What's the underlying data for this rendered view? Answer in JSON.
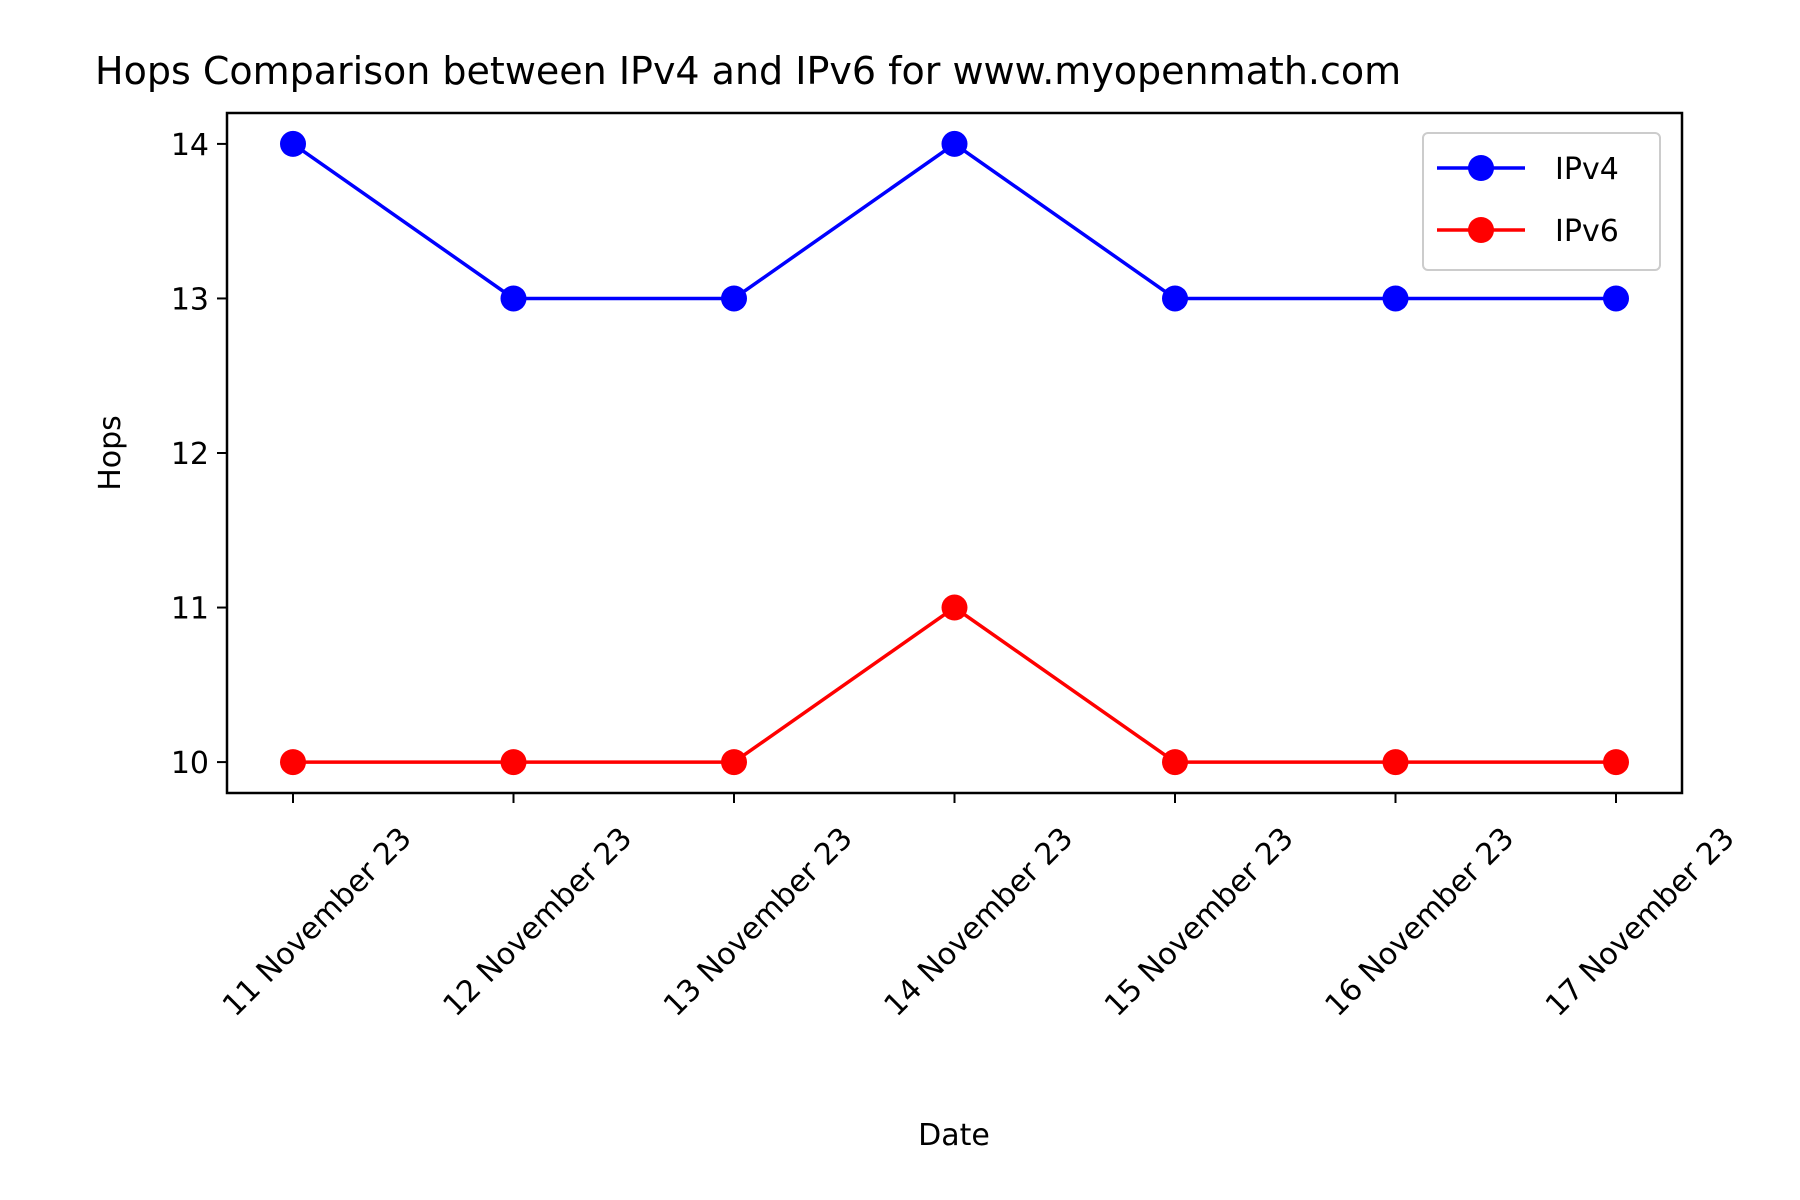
{
  "chart_data": {
    "type": "line",
    "title": "Hops Comparison between IPv4 and IPv6 for www.myopenmath.com",
    "xlabel": "Date",
    "ylabel": "Hops",
    "categories": [
      "11 November 23",
      "12 November 23",
      "13 November 23",
      "14 November 23",
      "15 November 23",
      "16 November 23",
      "17 November 23"
    ],
    "y_ticks": [
      10,
      11,
      12,
      13,
      14
    ],
    "ylim": [
      9.8,
      14.2
    ],
    "grid": false,
    "legend_position": "top-right",
    "series": [
      {
        "name": "IPv4",
        "color": "#0000ff",
        "marker": "circle",
        "values": [
          14,
          13,
          13,
          14,
          13,
          13,
          13
        ]
      },
      {
        "name": "IPv6",
        "color": "#ff0000",
        "marker": "circle",
        "values": [
          10,
          10,
          10,
          11,
          10,
          10,
          10
        ]
      }
    ]
  }
}
